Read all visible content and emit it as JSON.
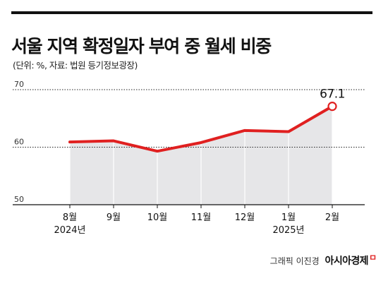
{
  "header": {
    "title": "서울 지역 확정일자 부여 중 월세 비중",
    "subtitle": "(단위: %, 자료: 법원 등기정보광장)"
  },
  "chart_data": {
    "type": "area",
    "categories": [
      "8월",
      "9월",
      "10월",
      "11월",
      "12월",
      "1월",
      "2월"
    ],
    "year_labels": [
      {
        "category": "8월",
        "text": "2024년"
      },
      {
        "category": "1월",
        "text": "2025년"
      }
    ],
    "values": [
      60.9,
      61.1,
      59.3,
      60.8,
      62.9,
      62.7,
      67.1
    ],
    "value_label": {
      "index": 6,
      "text": "67.1"
    },
    "yticks": [
      50,
      60,
      70
    ],
    "ylim": [
      50,
      70
    ],
    "grid": true,
    "line_color": "#e02020",
    "area_color": "#e6e6e8"
  },
  "footer": {
    "credit": "그래픽 이진경",
    "brand": "아시아경제",
    "brand_mark": "ㅁ"
  }
}
